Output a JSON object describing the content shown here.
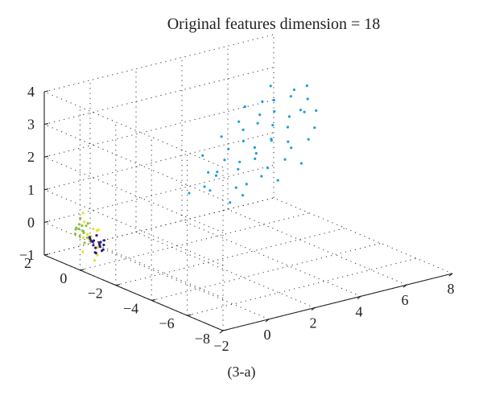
{
  "chart_data": {
    "type": "scatter",
    "projection": "3d",
    "title": "Original features dimension = 18",
    "caption": "(3-a)",
    "grid": true,
    "axes": {
      "x": {
        "ticks": [
          "−2",
          "0",
          "2",
          "4",
          "6",
          "8"
        ],
        "range": [
          -2,
          8
        ]
      },
      "y": {
        "ticks": [
          "2",
          "0",
          "−2",
          "−4",
          "−6",
          "−8"
        ],
        "range": [
          2,
          -8
        ]
      },
      "z": {
        "ticks": [
          "4",
          "3",
          "2",
          "1",
          "0",
          "−1"
        ],
        "range": [
          -1,
          4
        ]
      }
    },
    "series": [
      {
        "color": "#1f9fd8",
        "points": [
          [
            2.5,
            -1.5,
            1.0
          ],
          [
            2.8,
            -0.8,
            0.9
          ],
          [
            3.0,
            -1.2,
            1.3
          ],
          [
            3.2,
            -0.5,
            1.2
          ],
          [
            3.4,
            -1.8,
            1.0
          ],
          [
            3.6,
            -0.9,
            1.6
          ],
          [
            3.8,
            -1.4,
            1.4
          ],
          [
            4.0,
            -0.6,
            1.8
          ],
          [
            4.1,
            -1.1,
            1.5
          ],
          [
            4.3,
            -1.7,
            1.7
          ],
          [
            4.5,
            -0.8,
            2.0
          ],
          [
            4.6,
            -1.3,
            1.9
          ],
          [
            4.8,
            -0.4,
            2.2
          ],
          [
            4.9,
            -1.0,
            1.6
          ],
          [
            5.1,
            -1.6,
            2.1
          ],
          [
            5.2,
            -0.7,
            2.4
          ],
          [
            5.4,
            -1.2,
            2.0
          ],
          [
            5.6,
            -0.3,
            2.5
          ],
          [
            5.7,
            -0.9,
            2.3
          ],
          [
            5.9,
            -1.5,
            1.9
          ],
          [
            6.0,
            -0.6,
            2.6
          ],
          [
            6.2,
            -1.1,
            2.2
          ],
          [
            6.3,
            -0.2,
            2.8
          ],
          [
            6.5,
            -0.8,
            2.4
          ],
          [
            6.6,
            -1.3,
            2.7
          ],
          [
            6.8,
            -0.5,
            2.9
          ],
          [
            7.0,
            -1.0,
            2.5
          ],
          [
            7.1,
            -0.3,
            3.0
          ],
          [
            7.3,
            -0.8,
            2.8
          ],
          [
            7.5,
            -0.5,
            3.1
          ],
          [
            2.9,
            -2.1,
            0.7
          ],
          [
            3.3,
            -2.3,
            0.9
          ],
          [
            3.7,
            -2.0,
            1.1
          ],
          [
            4.2,
            -2.2,
            1.3
          ],
          [
            4.7,
            -1.9,
            1.4
          ],
          [
            5.3,
            -2.1,
            1.6
          ],
          [
            5.8,
            -1.8,
            1.8
          ],
          [
            6.4,
            -2.0,
            2.0
          ],
          [
            6.9,
            -1.7,
            2.2
          ],
          [
            3.5,
            0.2,
            1.5
          ],
          [
            4.4,
            0.3,
            1.9
          ],
          [
            5.0,
            0.1,
            2.3
          ],
          [
            5.5,
            0.4,
            2.6
          ],
          [
            6.1,
            0.2,
            2.7
          ],
          [
            6.7,
            0.5,
            3.0
          ],
          [
            2.6,
            -0.2,
            0.6
          ],
          [
            3.9,
            -0.1,
            1.0
          ],
          [
            4.6,
            -2.6,
            1.2
          ],
          [
            5.7,
            -2.5,
            1.5
          ],
          [
            7.2,
            -1.4,
            2.6
          ]
        ]
      },
      {
        "color": "#e8e030",
        "points": [
          [
            -1.4,
            0.3,
            -0.2
          ],
          [
            -1.6,
            0.1,
            0.0
          ],
          [
            -1.3,
            -0.1,
            -0.4
          ],
          [
            -1.5,
            0.4,
            0.3
          ],
          [
            -1.7,
            0.2,
            -0.1
          ],
          [
            -1.2,
            0.0,
            0.1
          ],
          [
            -1.4,
            -0.2,
            -0.6
          ],
          [
            -1.6,
            0.5,
            0.4
          ],
          [
            -1.3,
            0.3,
            -0.3
          ],
          [
            -1.5,
            -0.1,
            0.2
          ],
          [
            -1.8,
            0.1,
            -0.5
          ],
          [
            -1.1,
            0.2,
            0.0
          ],
          [
            -1.4,
            0.6,
            0.5
          ],
          [
            -1.6,
            -0.3,
            -0.7
          ],
          [
            -1.2,
            0.4,
            -0.2
          ]
        ]
      },
      {
        "color": "#8fbf40",
        "points": [
          [
            -1.6,
            0.4,
            0.2
          ],
          [
            -1.7,
            0.2,
            0.1
          ],
          [
            -1.5,
            0.5,
            0.0
          ],
          [
            -1.8,
            0.3,
            0.3
          ],
          [
            -1.6,
            0.1,
            -0.1
          ],
          [
            -1.9,
            0.4,
            0.0
          ],
          [
            -1.5,
            0.3,
            0.2
          ],
          [
            -1.7,
            0.6,
            0.1
          ],
          [
            -1.8,
            0.0,
            -0.2
          ],
          [
            -1.6,
            0.5,
            0.4
          ],
          [
            -1.9,
            0.2,
            0.2
          ],
          [
            -1.7,
            0.4,
            -0.1
          ],
          [
            -1.5,
            0.2,
            0.3
          ],
          [
            -1.8,
            0.5,
            0.1
          ],
          [
            -1.6,
            0.3,
            0.0
          ]
        ]
      },
      {
        "color": "#2a1f80",
        "points": [
          [
            -1.4,
            0.0,
            -0.2
          ],
          [
            -1.3,
            -0.2,
            -0.3
          ],
          [
            -1.5,
            0.1,
            -0.1
          ],
          [
            -1.2,
            -0.1,
            -0.4
          ],
          [
            -1.4,
            -0.3,
            -0.2
          ],
          [
            -1.3,
            0.2,
            -0.3
          ],
          [
            -1.5,
            -0.2,
            -0.5
          ],
          [
            -1.2,
            0.1,
            -0.1
          ],
          [
            -1.4,
            -0.1,
            -0.4
          ],
          [
            -1.1,
            -0.2,
            -0.2
          ],
          [
            -1.3,
            0.0,
            -0.6
          ],
          [
            -1.5,
            -0.1,
            -0.3
          ],
          [
            -1.2,
            -0.3,
            -0.3
          ],
          [
            -1.4,
            0.2,
            -0.2
          ],
          [
            -1.3,
            -0.4,
            -0.4
          ],
          [
            -1.1,
            0.0,
            -0.3
          ],
          [
            -1.5,
            0.0,
            -0.2
          ],
          [
            -1.2,
            -0.2,
            -0.5
          ]
        ]
      }
    ]
  }
}
